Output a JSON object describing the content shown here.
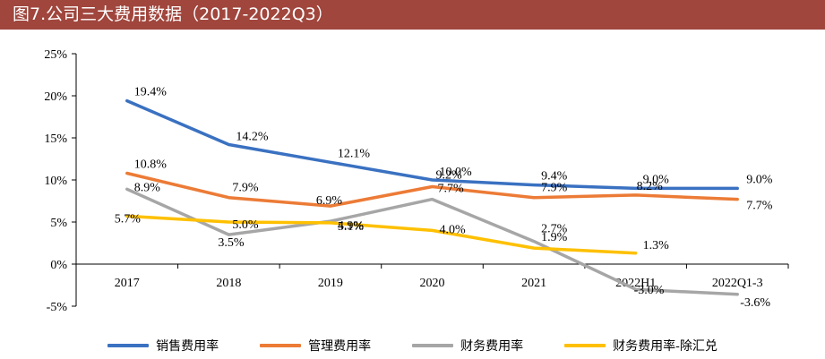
{
  "header": {
    "title": "图7.公司三大费用数据（2017-2022Q3）"
  },
  "chart_data": {
    "type": "line",
    "categories": [
      "2017",
      "2018",
      "2019",
      "2020",
      "2021",
      "2022H1",
      "2022Q1-3"
    ],
    "ylim": [
      -5,
      25
    ],
    "yticks": [
      -5,
      0,
      5,
      10,
      15,
      20,
      25
    ],
    "ytick_labels": [
      "-5%",
      "0%",
      "5%",
      "10%",
      "15%",
      "20%",
      "25%"
    ],
    "grid": false,
    "legend_position": "bottom",
    "series": [
      {
        "name": "销售费用率",
        "color": "#3a71c1",
        "values": [
          19.4,
          14.2,
          12.1,
          10.0,
          9.4,
          9.0,
          9.0
        ],
        "labels": [
          "19.4%",
          "14.2%",
          "12.1%",
          "10.0%",
          "9.4%",
          "9.0%",
          "9.0%"
        ]
      },
      {
        "name": "管理费用率",
        "color": "#ec7b36",
        "values": [
          10.8,
          7.9,
          6.9,
          9.2,
          7.9,
          8.2,
          7.7
        ],
        "labels": [
          "10.8%",
          "7.9%",
          "6.9%",
          "9.2%",
          "7.9%",
          "8.2%",
          "7.7%"
        ]
      },
      {
        "name": "财务费用率",
        "color": "#a6a6a6",
        "values": [
          8.9,
          3.5,
          5.1,
          7.7,
          2.7,
          -3.0,
          -3.6
        ],
        "labels": [
          "8.9%",
          "3.5%",
          "5.1%",
          "7.7%",
          "2.7%",
          "-3.0%",
          "-3.6%"
        ]
      },
      {
        "name": "财务费用率-除汇兑",
        "color": "#fec000",
        "values": [
          5.7,
          5.0,
          4.9,
          4.0,
          1.9,
          1.3,
          null
        ],
        "labels": [
          "5.7%",
          "5.0%",
          "4.9%",
          "4.0%",
          "1.9%",
          "1.3%",
          ""
        ]
      }
    ]
  }
}
